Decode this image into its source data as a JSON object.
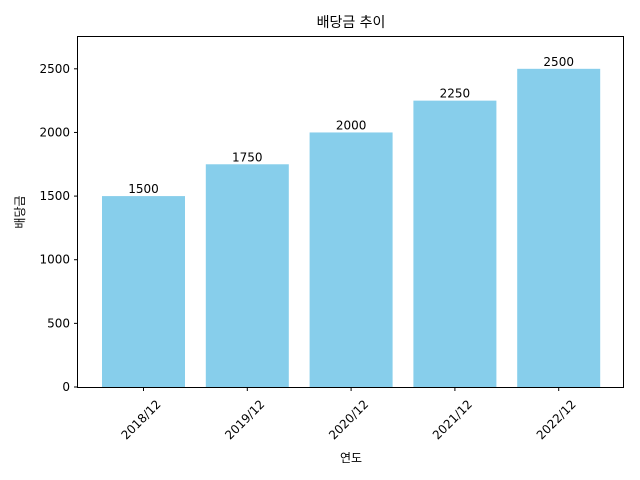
{
  "chart_data": {
    "type": "bar",
    "title": "배당금 추이",
    "xlabel": "연도",
    "ylabel": "배당금",
    "categories": [
      "2018/12",
      "2019/12",
      "2020/12",
      "2021/12",
      "2022/12"
    ],
    "values": [
      1500,
      1750,
      2000,
      2250,
      2500
    ],
    "ylim": [
      0,
      2750
    ],
    "yticks": [
      0,
      500,
      1000,
      1500,
      2000,
      2500
    ],
    "bar_color": "#87CEEB",
    "grid": false,
    "legend": "none"
  }
}
